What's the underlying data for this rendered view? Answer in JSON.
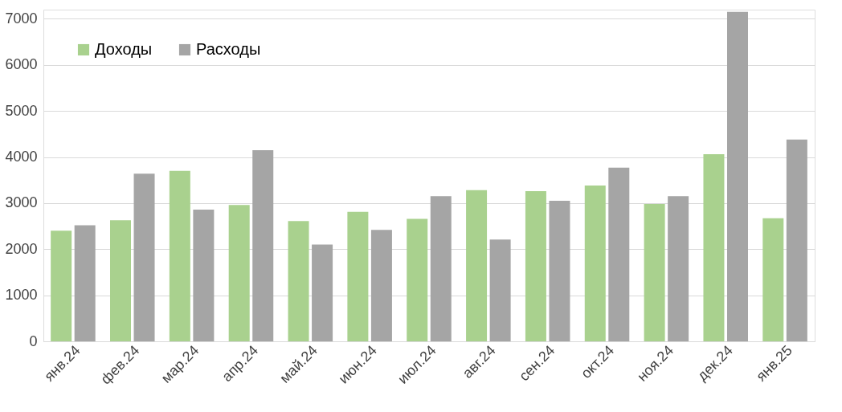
{
  "chart_data": {
    "type": "bar",
    "categories": [
      "янв.24",
      "фев.24",
      "мар.24",
      "апр.24",
      "май.24",
      "июн.24",
      "июл.24",
      "авг.24",
      "сен.24",
      "окт.24",
      "ноя.24",
      "дек.24",
      "янв.25"
    ],
    "series": [
      {
        "name": "Доходы",
        "color": "#a9d18e",
        "values": [
          2400,
          2630,
          3700,
          2960,
          2610,
          2810,
          2660,
          3280,
          3260,
          3380,
          2980,
          4060,
          2670
        ]
      },
      {
        "name": "Расходы",
        "color": "#a5a5a5",
        "values": [
          2520,
          3640,
          2860,
          4150,
          2100,
          2420,
          3150,
          2210,
          3050,
          3770,
          3150,
          7150,
          4380
        ]
      }
    ],
    "ylim": [
      0,
      7200
    ],
    "yticks": [
      0,
      1000,
      2000,
      3000,
      4000,
      5000,
      6000,
      7000
    ],
    "grid": "y",
    "legend": "top left"
  }
}
